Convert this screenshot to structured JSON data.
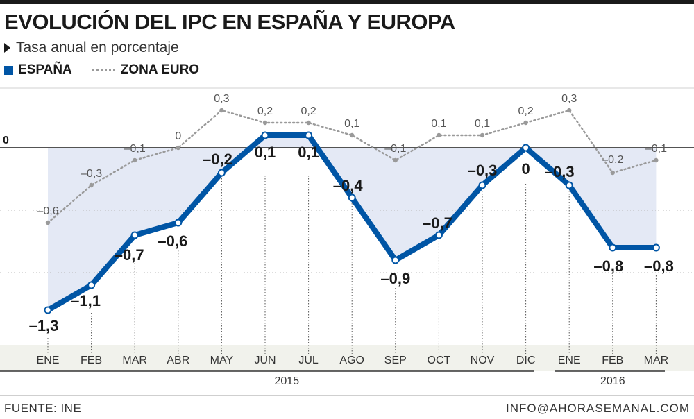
{
  "header": {
    "title": "EVOLUCIÓN DEL IPC EN ESPAÑA Y EUROPA",
    "subtitle": "Tasa anual en porcentaje"
  },
  "footer": {
    "source": "FUENTE: INE",
    "contact": "INFO@AHORASEMANAL.COM"
  },
  "colors": {
    "spain": "#0055a5",
    "eurozone": "#9a9a9a",
    "area": "#e4e9f5",
    "axis_band": "#f1f2ec"
  },
  "icons": {
    "subtitle_marker": "triangle-right-icon"
  },
  "chart_data": {
    "type": "line",
    "categories": [
      "ENE",
      "FEB",
      "MAR",
      "ABR",
      "MAY",
      "JUN",
      "JUL",
      "AGO",
      "SEP",
      "OCT",
      "NOV",
      "DIC",
      "ENE",
      "FEB",
      "MAR"
    ],
    "year_groups": [
      {
        "label": "2015",
        "from": 0,
        "to": 11
      },
      {
        "label": "2016",
        "from": 12,
        "to": 14
      }
    ],
    "series": [
      {
        "name": "ESPAÑA",
        "values": [
          -1.3,
          -1.1,
          -0.7,
          -0.6,
          -0.2,
          0.1,
          0.1,
          -0.4,
          -0.9,
          -0.7,
          -0.3,
          0,
          -0.3,
          -0.8,
          -0.8
        ],
        "labels": [
          "–1,3",
          "–1,1",
          "–0,7",
          "–0,6",
          "–0,2",
          "0,1",
          "0,1",
          "–0,4",
          "–0,9",
          "–0,7",
          "–0,3",
          "0",
          "–0,3",
          "–0,8",
          "–0,8"
        ]
      },
      {
        "name": "ZONA EURO",
        "values": [
          -0.6,
          -0.3,
          -0.1,
          0,
          0.3,
          0.2,
          0.2,
          0.1,
          -0.1,
          0.1,
          0.1,
          0.2,
          0.3,
          -0.2,
          -0.1
        ],
        "labels": [
          "–0,6",
          "–0,3",
          "–0,1",
          "0",
          "0,3",
          "0,2",
          "0,2",
          "0,1",
          "–0,1",
          "0,1",
          "0,1",
          "0,2",
          "0,3",
          "–0,2",
          "–0,1"
        ]
      }
    ],
    "zero_label": "0",
    "ylim": [
      -1.4,
      0.5
    ],
    "grid": "horizontal dashed",
    "legend": "top-left"
  }
}
